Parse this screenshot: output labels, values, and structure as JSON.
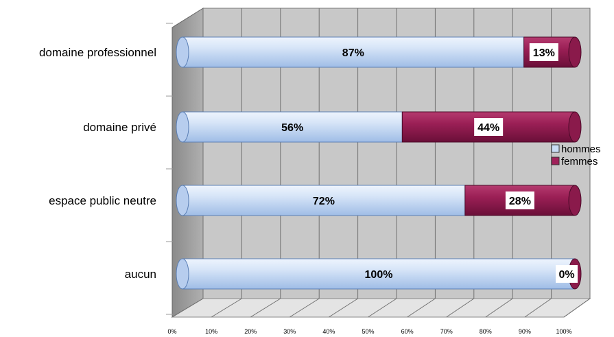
{
  "chart_data": {
    "type": "bar",
    "orientation": "horizontal",
    "stacked": true,
    "percent": true,
    "categories": [
      "domaine professionnel",
      "domaine privé",
      "espace public neutre",
      "aucun"
    ],
    "series": [
      {
        "name": "hommes",
        "values": [
          87,
          56,
          72,
          100
        ],
        "labels": [
          "87%",
          "56%",
          "72%",
          "100%"
        ]
      },
      {
        "name": "femmes",
        "values": [
          13,
          44,
          28,
          0
        ],
        "labels": [
          "13%",
          "44%",
          "28%",
          "0%"
        ]
      }
    ],
    "xticks": [
      "0%",
      "10%",
      "20%",
      "30%",
      "40%",
      "50%",
      "60%",
      "70%",
      "80%",
      "90%",
      "100%"
    ],
    "xlim": [
      0,
      100
    ],
    "grid": true,
    "legend": "right",
    "colors": {
      "hommes": "#c9dcf5",
      "femmes": "#a0215a"
    }
  }
}
